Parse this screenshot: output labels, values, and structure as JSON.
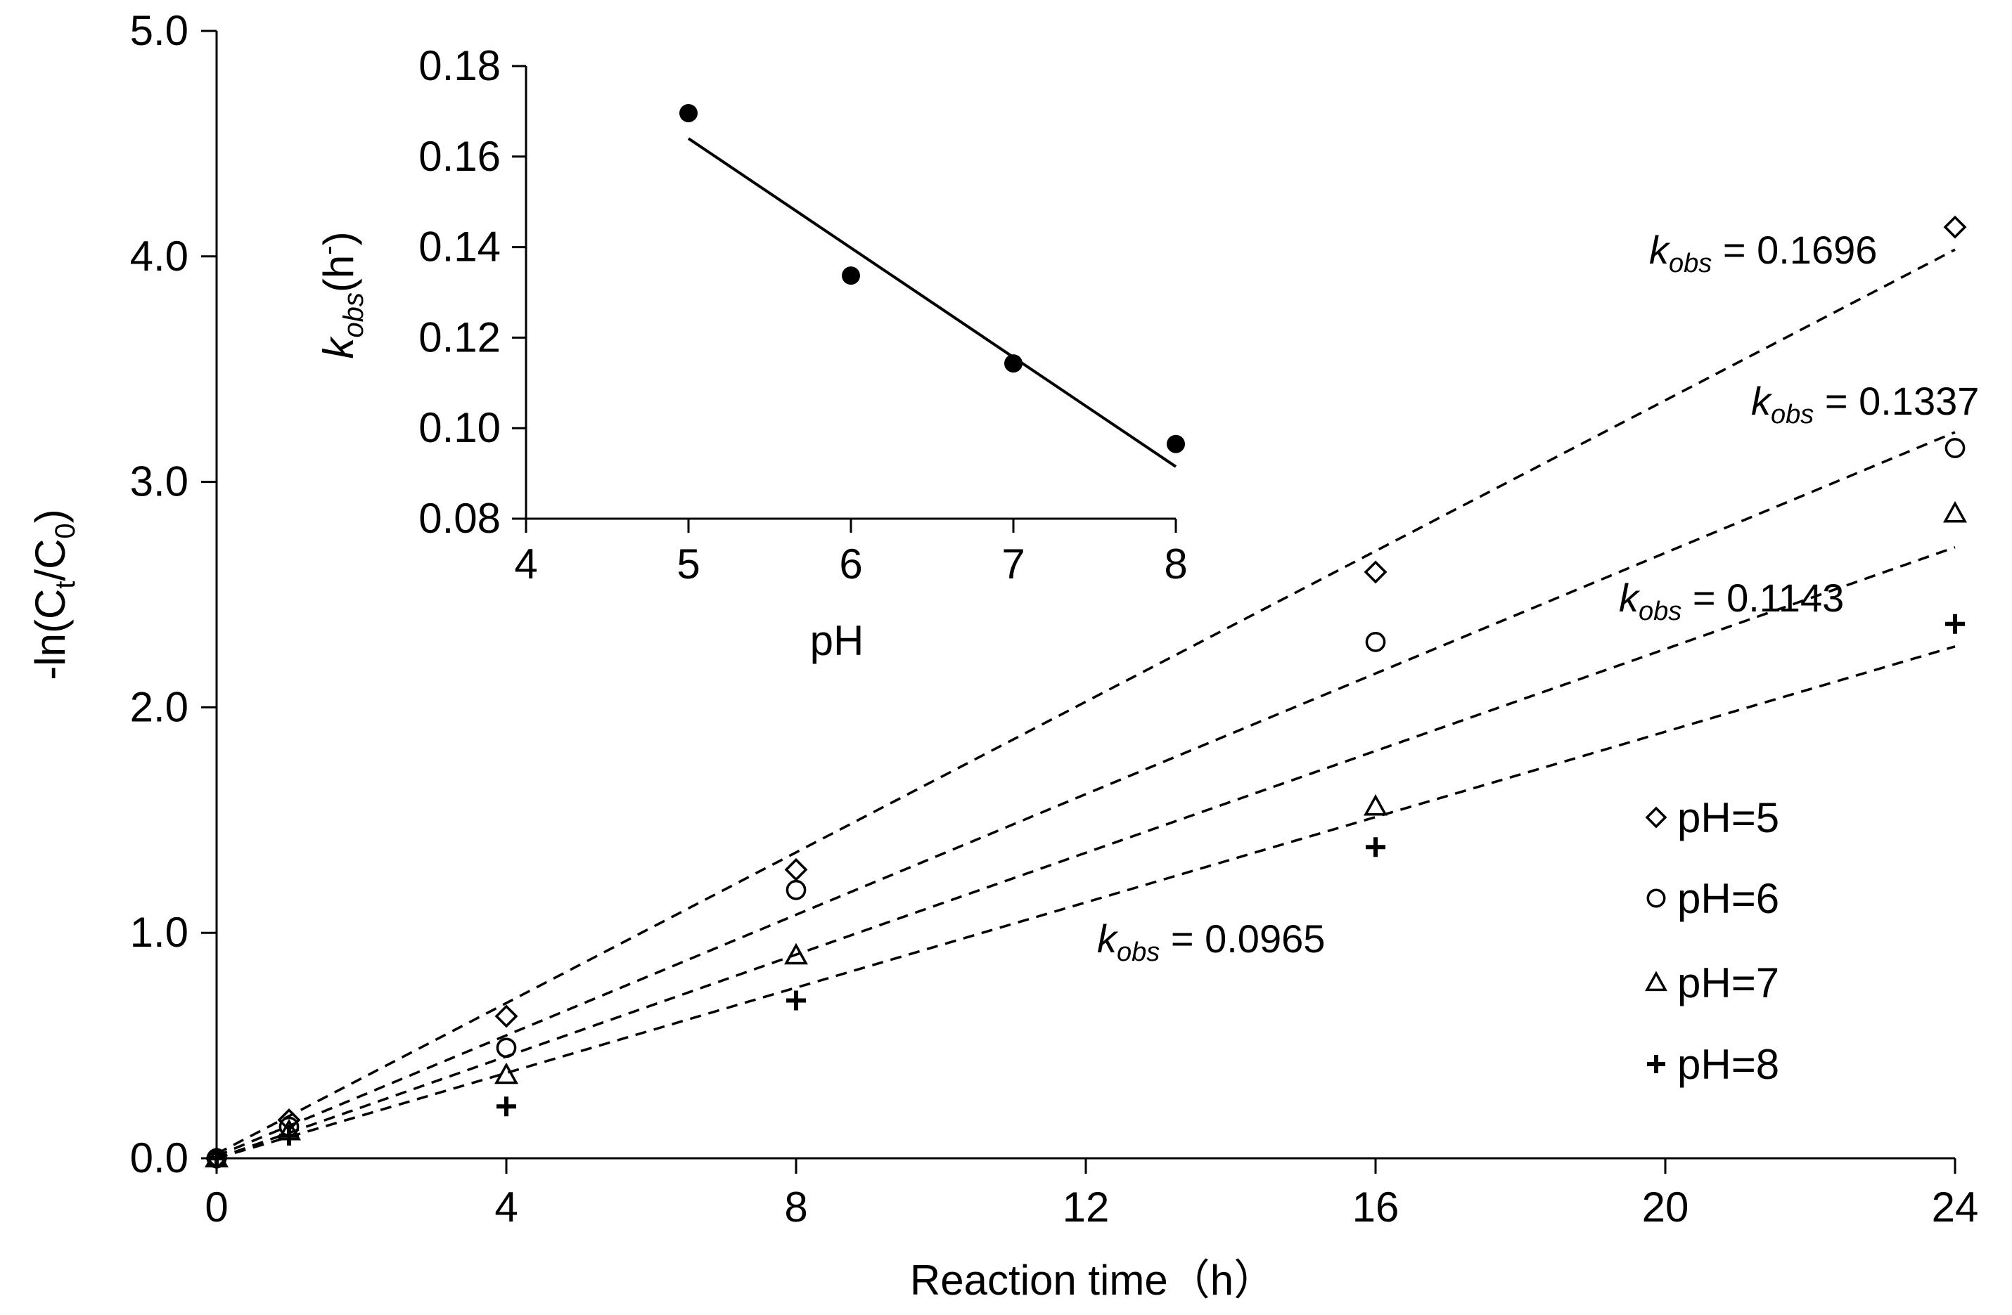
{
  "chart_data": [
    {
      "type": "scatter",
      "title": "",
      "xlabel_main": "Reaction time",
      "xlabel_unit": "（h）",
      "ylabel_main": "-ln(C",
      "ylabel_sub_t": "t",
      "ylabel_sep": "/C",
      "ylabel_sub_0": "0",
      "ylabel_close": ")",
      "xlim": [
        0,
        24
      ],
      "ylim": [
        0,
        5
      ],
      "xticks": [
        0,
        4,
        8,
        12,
        16,
        20,
        24
      ],
      "xtick_labels": [
        "0",
        "4",
        "8",
        "12",
        "16",
        "20",
        "24"
      ],
      "yticks": [
        0,
        1,
        2,
        3,
        4,
        5
      ],
      "ytick_labels": [
        "0.0",
        "1.0",
        "2.0",
        "3.0",
        "4.0",
        "5.0"
      ],
      "grid": false,
      "legend_position": "right",
      "x": [
        0,
        1,
        4,
        8,
        16,
        24
      ],
      "series": [
        {
          "name": "pH=5",
          "marker": "diamond",
          "values": [
            0,
            0.17,
            0.63,
            1.28,
            2.6,
            4.13
          ],
          "fit_slope": 0.1696,
          "fit_x": [
            0,
            24
          ],
          "fit_y": [
            0.02,
            4.03
          ]
        },
        {
          "name": "pH=6",
          "marker": "circle",
          "values": [
            0,
            0.14,
            0.49,
            1.19,
            2.29,
            3.15
          ],
          "fit_slope": 0.1337,
          "fit_x": [
            0,
            24
          ],
          "fit_y": [
            0.01,
            3.22
          ]
        },
        {
          "name": "pH=7",
          "marker": "triangle",
          "values": [
            0,
            0.12,
            0.37,
            0.9,
            1.56,
            2.86
          ],
          "fit_slope": 0.1143,
          "fit_x": [
            0,
            24
          ],
          "fit_y": [
            0.0,
            2.71
          ]
        },
        {
          "name": "pH=8",
          "marker": "plus",
          "values": [
            0,
            0.1,
            0.23,
            0.7,
            1.38,
            2.37
          ],
          "fit_slope": 0.0965,
          "fit_x": [
            0,
            24
          ],
          "fit_y": [
            0.0,
            2.27
          ]
        }
      ],
      "annotations": [
        {
          "prefix": "k",
          "sub": "obs",
          "text": " = 0.1696",
          "series": "pH=5"
        },
        {
          "prefix": "k",
          "sub": "obs",
          "text": " = 0.1337",
          "series": "pH=6"
        },
        {
          "prefix": "k",
          "sub": "obs",
          "text": " = 0.1143",
          "series": "pH=7"
        },
        {
          "prefix": "k",
          "sub": "obs",
          "text": " = 0.0965",
          "series": "pH=8"
        }
      ]
    },
    {
      "type": "scatter",
      "title": "",
      "xlabel": "pH",
      "ylabel_k": "k",
      "ylabel_sub": "obs",
      "ylabel_unit": "(h",
      "ylabel_sup": "-",
      "ylabel_close": ")",
      "xlim": [
        4,
        8
      ],
      "ylim": [
        0.08,
        0.18
      ],
      "xticks": [
        4,
        5,
        6,
        7,
        8
      ],
      "xtick_labels": [
        "4",
        "5",
        "6",
        "7",
        "8"
      ],
      "yticks": [
        0.08,
        0.1,
        0.12,
        0.14,
        0.16,
        0.18
      ],
      "ytick_labels": [
        "0.08",
        "0.10",
        "0.12",
        "0.14",
        "0.16",
        "0.18"
      ],
      "grid": false,
      "x": [
        5,
        6,
        7,
        8
      ],
      "values": [
        0.1696,
        0.1337,
        0.1143,
        0.0965
      ],
      "fit_x": [
        5,
        8
      ],
      "fit_y": [
        0.164,
        0.0915
      ]
    }
  ]
}
